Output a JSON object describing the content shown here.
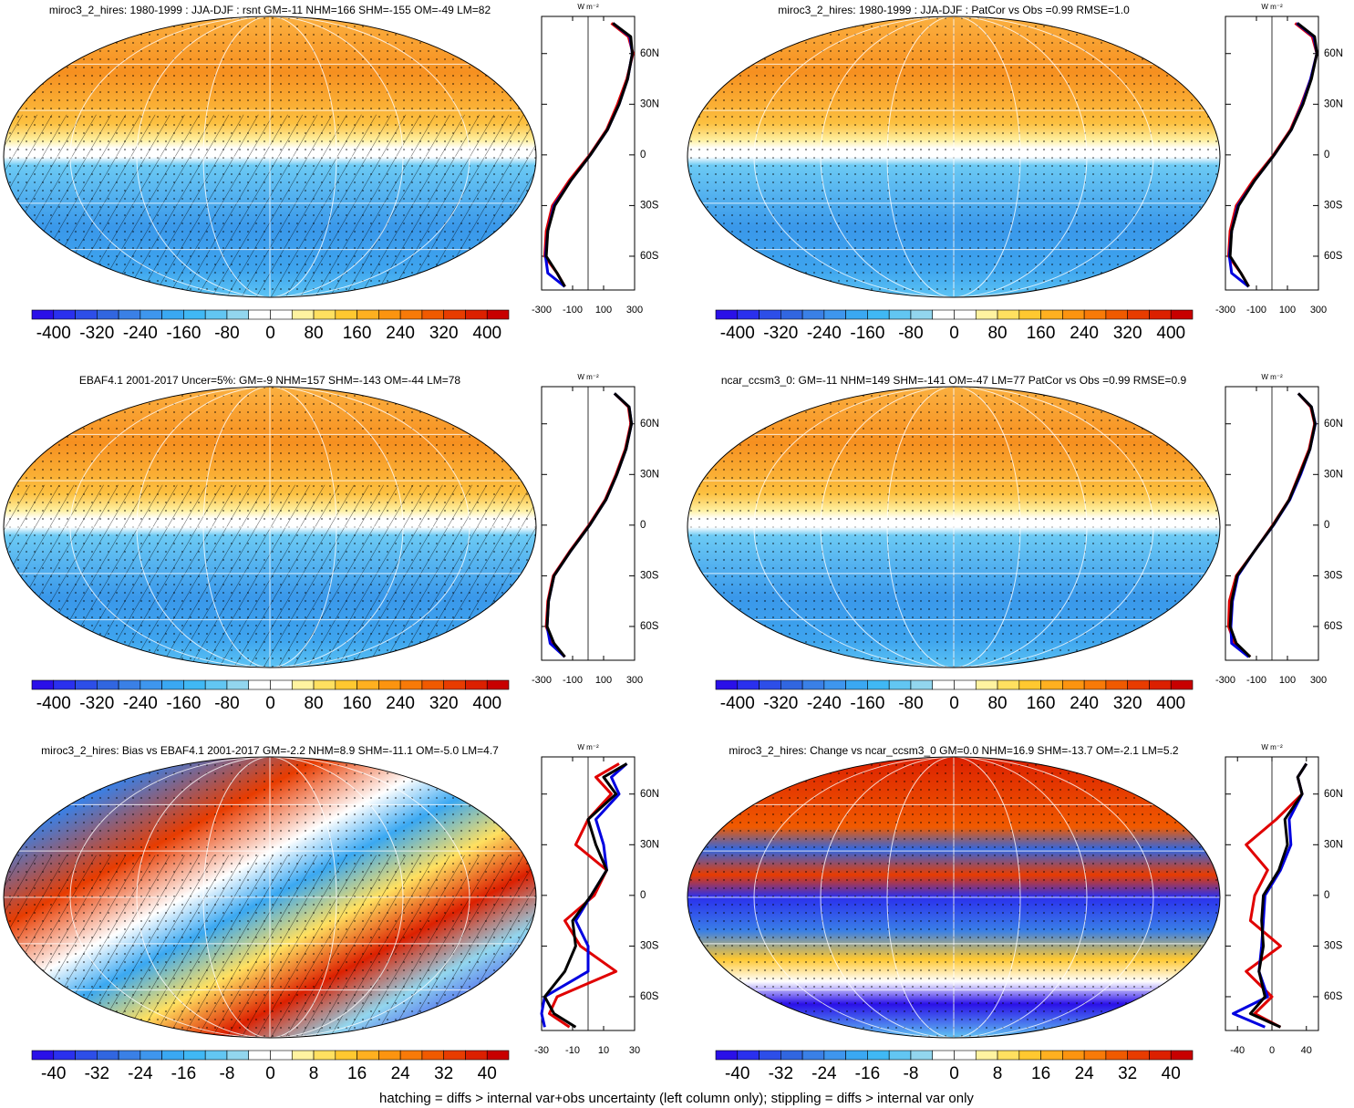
{
  "chart_data": {
    "type": "map_panels",
    "footer": "hatching = diffs > internal var+obs uncertainty (left column only); stippling = diffs > internal var only",
    "unit": "W m⁻²",
    "lat": [
      78,
      70,
      60,
      45,
      30,
      15,
      0,
      -15,
      -30,
      -45,
      -60,
      -70,
      -78
    ],
    "ylim": [
      -80,
      82
    ],
    "yticks": [
      {
        "value": 60,
        "label": "60N"
      },
      {
        "value": 30,
        "label": "30N"
      },
      0,
      {
        "value": -30,
        "label": "30S"
      },
      {
        "value": -60,
        "label": "60S"
      }
    ],
    "panels": [
      {
        "title": "miroc3_2_hires: 1980-1999 : JJA-DJF : rsnt GM=-11 NHM=166 SHM=-155 OM=-49 LM=82",
        "style": "abs",
        "hatch": true,
        "colorbar_ticks": [
          -400,
          -320,
          -240,
          -160,
          -80,
          0,
          80,
          160,
          240,
          320,
          400
        ],
        "xlim": [
          -300,
          300
        ],
        "xticks": [
          -300,
          -100,
          100,
          300
        ],
        "series": [
          {
            "color": "#e00000",
            "values": [
              150,
              260,
              290,
              250,
              190,
              120,
              10,
              -120,
              -230,
              -270,
              -280,
              -200,
              -150
            ]
          },
          {
            "color": "#0000e0",
            "values": [
              160,
              270,
              285,
              255,
              200,
              125,
              15,
              -110,
              -220,
              -260,
              -275,
              -260,
              -150
            ]
          },
          {
            "color": "#000000",
            "values": [
              160,
              275,
              285,
              255,
              200,
              125,
              15,
              -110,
              -215,
              -260,
              -270,
              -200,
              -150
            ]
          }
        ]
      },
      {
        "title": "miroc3_2_hires: 1980-1999 : JJA-DJF : PatCor vs Obs =0.99 RMSE=1.0",
        "style": "abs",
        "hatch": false,
        "colorbar_ticks": [
          -400,
          -320,
          -240,
          -160,
          -80,
          0,
          80,
          160,
          240,
          320,
          400
        ],
        "xlim": [
          -300,
          300
        ],
        "xticks": [
          -300,
          -100,
          100,
          300
        ],
        "series": [
          {
            "color": "#e00000",
            "values": [
              150,
              260,
              290,
              250,
              190,
              120,
              10,
              -120,
              -230,
              -270,
              -280,
              -200,
              -150
            ]
          },
          {
            "color": "#0000e0",
            "values": [
              160,
              270,
              290,
              250,
              195,
              125,
              15,
              -110,
              -220,
              -260,
              -275,
              -260,
              -150
            ]
          },
          {
            "color": "#000000",
            "values": [
              165,
              275,
              290,
              255,
              200,
              125,
              15,
              -110,
              -215,
              -260,
              -270,
              -200,
              -150
            ]
          }
        ]
      },
      {
        "title": "EBAF4.1 2001-2017 Uncer=5%: GM=-9 NHM=157 SHM=-143 OM=-44 LM=78",
        "style": "abs",
        "hatch": true,
        "colorbar_ticks": [
          -400,
          -320,
          -240,
          -160,
          -80,
          0,
          80,
          160,
          240,
          320,
          400
        ],
        "xlim": [
          -300,
          300
        ],
        "xticks": [
          -300,
          -100,
          100,
          300
        ],
        "series": [
          {
            "color": "#e00000",
            "values": [
              170,
              260,
              275,
              240,
              180,
              110,
              5,
              -115,
              -225,
              -260,
              -270,
              -230,
              -150
            ]
          },
          {
            "color": "#0000e0",
            "values": [
              170,
              265,
              280,
              245,
              185,
              115,
              10,
              -110,
              -220,
              -255,
              -265,
              -245,
              -150
            ]
          },
          {
            "color": "#000000",
            "values": [
              170,
              265,
              280,
              245,
              185,
              115,
              10,
              -110,
              -220,
              -255,
              -265,
              -220,
              -150
            ]
          }
        ]
      },
      {
        "title": "ncar_ccsm3_0: GM=-11 NHM=149 SHM=-141 OM=-47 LM=77 PatCor vs Obs =0.99 RMSE=0.9",
        "style": "abs",
        "hatch": false,
        "colorbar_ticks": [
          -400,
          -320,
          -240,
          -160,
          -80,
          0,
          80,
          160,
          240,
          320,
          400
        ],
        "xlim": [
          -300,
          300
        ],
        "xticks": [
          -300,
          -100,
          100,
          300
        ],
        "series": [
          {
            "color": "#e00000",
            "values": [
              170,
              250,
              275,
              240,
              175,
              110,
              5,
              -110,
              -230,
              -275,
              -280,
              -240,
              -140
            ]
          },
          {
            "color": "#0000e0",
            "values": [
              170,
              255,
              280,
              245,
              185,
              115,
              10,
              -110,
              -220,
              -255,
              -265,
              -260,
              -150
            ]
          },
          {
            "color": "#000000",
            "values": [
              170,
              255,
              278,
              245,
              180,
              112,
              8,
              -110,
              -225,
              -260,
              -270,
              -230,
              -140
            ]
          }
        ]
      },
      {
        "title": "miroc3_2_hires: Bias vs EBAF4.1 2001-2017 GM=-2.2 NHM=8.9 SHM=-11.1 OM=-5.0 LM=4.7",
        "style": "diff",
        "hatch": true,
        "colorbar_ticks": [
          -40,
          -32,
          -24,
          -16,
          -8,
          0,
          8,
          16,
          24,
          32,
          40
        ],
        "xlim": [
          -30,
          30
        ],
        "xticks": [
          -30,
          -10,
          10,
          30
        ],
        "series": [
          {
            "color": "#e00000",
            "values": [
              20,
              5,
              15,
              0,
              -8,
              12,
              4,
              -15,
              -5,
              18,
              -20,
              -25,
              -12
            ]
          },
          {
            "color": "#0000e0",
            "values": [
              25,
              15,
              20,
              5,
              10,
              12,
              2,
              -8,
              0,
              0,
              -28,
              -30,
              -28
            ]
          },
          {
            "color": "#000000",
            "values": [
              25,
              10,
              18,
              0,
              5,
              12,
              2,
              -10,
              -8,
              -15,
              -28,
              -22,
              -8
            ]
          }
        ]
      },
      {
        "title": "miroc3_2_hires: Change vs ncar_ccsm3_0 GM=0.0 NHM=16.9 SHM=-13.7 OM=-2.1 LM=5.2",
        "style": "diff2",
        "hatch": false,
        "colorbar_ticks": [
          -40,
          -32,
          -24,
          -16,
          -8,
          0,
          8,
          16,
          24,
          32,
          40
        ],
        "xlim": [
          -54,
          54
        ],
        "xticks": [
          -40,
          0,
          40
        ],
        "series": [
          {
            "color": "#e00000",
            "values": [
              40,
              30,
              35,
              5,
              -30,
              -5,
              -20,
              -25,
              10,
              -30,
              0,
              -20,
              10
            ]
          },
          {
            "color": "#0000e0",
            "values": [
              40,
              30,
              35,
              20,
              22,
              10,
              -8,
              -10,
              -12,
              -15,
              -5,
              -45,
              -8
            ]
          },
          {
            "color": "#000000",
            "values": [
              40,
              30,
              35,
              15,
              18,
              8,
              -10,
              -12,
              -10,
              -15,
              -8,
              -25,
              10
            ]
          }
        ]
      }
    ]
  }
}
